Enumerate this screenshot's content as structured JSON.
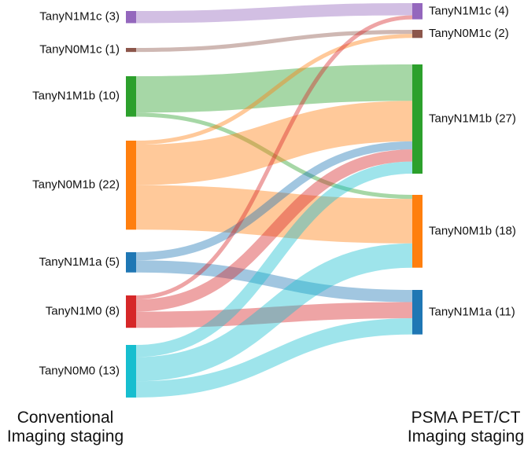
{
  "chart_data": {
    "type": "sankey",
    "left_title": [
      "Conventional",
      "Imaging staging"
    ],
    "right_title": [
      "PSMA PET/CT",
      "Imaging staging"
    ],
    "left_nodes": [
      {
        "id": "L_N1M1c",
        "label": "TanyN1M1c (3)",
        "value": 3,
        "color": "#9467bd"
      },
      {
        "id": "L_N0M1c",
        "label": "TanyN0M1c (1)",
        "value": 1,
        "color": "#8c564b"
      },
      {
        "id": "L_N1M1b",
        "label": "TanyN1M1b (10)",
        "value": 10,
        "color": "#2ca02c"
      },
      {
        "id": "L_N0M1b",
        "label": "TanyN0M1b (22)",
        "value": 22,
        "color": "#ff7f0e"
      },
      {
        "id": "L_N1M1a",
        "label": "TanyN1M1a (5)",
        "value": 5,
        "color": "#1f77b4"
      },
      {
        "id": "L_N1M0",
        "label": "TanyN1M0 (8)",
        "value": 8,
        "color": "#d62728"
      },
      {
        "id": "L_N0M0",
        "label": "TanyN0M0 (13)",
        "value": 13,
        "color": "#17becf"
      }
    ],
    "right_nodes": [
      {
        "id": "R_N1M1c",
        "label": "TanyN1M1c (4)",
        "value": 4,
        "color": "#9467bd"
      },
      {
        "id": "R_N0M1c",
        "label": "TanyN0M1c (2)",
        "value": 2,
        "color": "#8c564b"
      },
      {
        "id": "R_N1M1b",
        "label": "TanyN1M1b (27)",
        "value": 27,
        "color": "#2ca02c"
      },
      {
        "id": "R_N0M1b",
        "label": "TanyN0M1b (18)",
        "value": 18,
        "color": "#ff7f0e"
      },
      {
        "id": "R_N1M1a",
        "label": "TanyN1M1a (11)",
        "value": 11,
        "color": "#1f77b4"
      }
    ],
    "links": [
      {
        "source": "L_N1M1c",
        "target": "R_N1M1c",
        "value": 3
      },
      {
        "source": "L_N0M1c",
        "target": "R_N0M1c",
        "value": 1
      },
      {
        "source": "L_N1M1b",
        "target": "R_N1M1b",
        "value": 9
      },
      {
        "source": "L_N1M1b",
        "target": "R_N0M1b",
        "value": 1
      },
      {
        "source": "L_N0M1b",
        "target": "R_N0M1c",
        "value": 1
      },
      {
        "source": "L_N0M1b",
        "target": "R_N1M1b",
        "value": 10
      },
      {
        "source": "L_N0M1b",
        "target": "R_N0M1b",
        "value": 11
      },
      {
        "source": "L_N1M1a",
        "target": "R_N1M1b",
        "value": 2
      },
      {
        "source": "L_N1M1a",
        "target": "R_N1M1a",
        "value": 3
      },
      {
        "source": "L_N1M0",
        "target": "R_N1M1c",
        "value": 1
      },
      {
        "source": "L_N1M0",
        "target": "R_N1M1b",
        "value": 3
      },
      {
        "source": "L_N1M0",
        "target": "R_N1M1a",
        "value": 4
      },
      {
        "source": "L_N0M0",
        "target": "R_N1M1b",
        "value": 3
      },
      {
        "source": "L_N0M0",
        "target": "R_N0M1b",
        "value": 6
      },
      {
        "source": "L_N0M0",
        "target": "R_N1M1a",
        "value": 4
      }
    ]
  }
}
